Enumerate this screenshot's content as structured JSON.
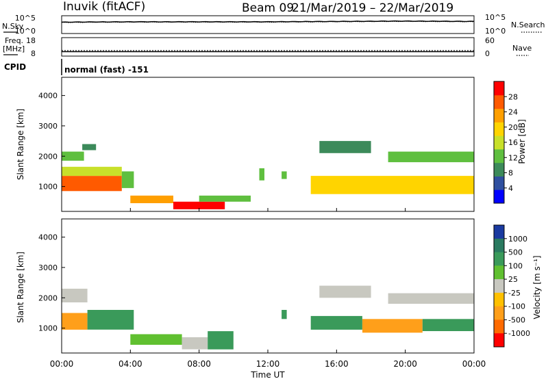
{
  "header": {
    "title": "Inuvik (fitACF)",
    "beam_label": "Beam 09",
    "date_range": "21/Mar/2019 – 22/Mar/2019",
    "cpid_label": "CPID",
    "mode": "normal (fast) -151"
  },
  "colors": {
    "power_scale": [
      "#0000ff",
      "#2f4f9f",
      "#3c8a5a",
      "#5fbf3f",
      "#c8e02a",
      "#ffd400",
      "#ff9f00",
      "#ff5a00",
      "#ff0000"
    ],
    "velocity_scale": [
      "#ff0000",
      "#ff6a00",
      "#ff9f1a",
      "#ffc000",
      "#c8c8c0",
      "#60c030",
      "#3a9a5a",
      "#2a7a60",
      "#1a3aa0"
    ]
  },
  "chart_data": [
    {
      "type": "line",
      "panel": "noise",
      "left_label": "N.Sky",
      "right_label": "N.Search",
      "left_ticks": [
        "10^5",
        "10^0"
      ],
      "right_ticks": [
        "10^5",
        "10^0"
      ],
      "x": [
        "00:00",
        "04:00",
        "08:00",
        "12:00",
        "16:00",
        "20:00",
        "00:00"
      ],
      "series": [
        {
          "values": [
            3.2,
            3.3,
            3.3,
            3.3,
            3.4,
            3.5,
            3.4
          ]
        },
        {
          "values": [
            3.1,
            3.2,
            3.2,
            3.2,
            3.3,
            3.4,
            3.3
          ]
        }
      ]
    },
    {
      "type": "line",
      "panel": "frequency",
      "left_label": "Freq.",
      "left_unit": "[MHz]",
      "right_label": "Nave",
      "left_ticks": [
        "18",
        "8"
      ],
      "right_ticks": [
        "60",
        "0"
      ],
      "series": [
        {
          "values": [
            11.0,
            11.0,
            11.0,
            11.0,
            11.0,
            11.0,
            11.0
          ]
        },
        {
          "values": [
            10.4,
            10.4,
            10.4,
            10.4,
            10.4,
            10.4,
            10.4
          ]
        }
      ]
    },
    {
      "type": "heatmap",
      "panel": "power",
      "ylabel": "Slant Range [km]",
      "yticks": [
        "1000",
        "2000",
        "3000",
        "4000"
      ],
      "ylim": [
        180,
        4600
      ],
      "xlim": [
        0,
        24
      ],
      "colorbar_label": "Power [dB]",
      "colorbar_ticks": [
        "4",
        "8",
        "12",
        "16",
        "20",
        "24",
        "28"
      ],
      "colorbar_range": [
        0,
        32
      ],
      "bands": [
        {
          "t0": 0.0,
          "t1": 3.5,
          "r0": 850,
          "r1": 1350,
          "level": 26
        },
        {
          "t0": 0.0,
          "t1": 3.5,
          "r0": 1350,
          "r1": 1650,
          "level": 16
        },
        {
          "t0": 0.0,
          "t1": 1.3,
          "r0": 1850,
          "r1": 2150,
          "level": 12
        },
        {
          "t0": 1.2,
          "t1": 2.0,
          "r0": 2200,
          "r1": 2400,
          "level": 8
        },
        {
          "t0": 3.5,
          "t1": 4.2,
          "r0": 950,
          "r1": 1500,
          "level": 12
        },
        {
          "t0": 4.0,
          "t1": 6.5,
          "r0": 450,
          "r1": 700,
          "level": 24
        },
        {
          "t0": 6.5,
          "t1": 9.5,
          "r0": 250,
          "r1": 500,
          "level": 30
        },
        {
          "t0": 8.0,
          "t1": 11.0,
          "r0": 500,
          "r1": 700,
          "level": 14
        },
        {
          "t0": 11.5,
          "t1": 11.8,
          "r0": 1200,
          "r1": 1600,
          "level": 12
        },
        {
          "t0": 12.8,
          "t1": 13.1,
          "r0": 1250,
          "r1": 1500,
          "level": 12
        },
        {
          "t0": 14.5,
          "t1": 24.0,
          "r0": 750,
          "r1": 1350,
          "level": 18
        },
        {
          "t0": 15.0,
          "t1": 18.0,
          "r0": 2100,
          "r1": 2500,
          "level": 10
        },
        {
          "t0": 19.0,
          "t1": 24.0,
          "r0": 1800,
          "r1": 2150,
          "level": 14
        }
      ]
    },
    {
      "type": "heatmap",
      "panel": "velocity",
      "ylabel": "Slant Range [km]",
      "yticks": [
        "1000",
        "2000",
        "3000",
        "4000"
      ],
      "ylim": [
        180,
        4600
      ],
      "xlim": [
        0,
        24
      ],
      "xlabel": "Time UT",
      "xticks": [
        "00:00",
        "04:00",
        "08:00",
        "12:00",
        "16:00",
        "20:00",
        "00:00"
      ],
      "colorbar_label": "Velocity [m s⁻¹]",
      "colorbar_ticks": [
        "1000",
        "500",
        "100",
        "25",
        "-25",
        "-100",
        "-500",
        "-1000"
      ],
      "bands": [
        {
          "t0": 0.0,
          "t1": 1.5,
          "r0": 950,
          "r1": 1500,
          "level": -300
        },
        {
          "t0": 1.5,
          "t1": 4.2,
          "r0": 950,
          "r1": 1600,
          "level": 150
        },
        {
          "t0": 0.0,
          "t1": 1.5,
          "r0": 1850,
          "r1": 2300,
          "level": 0
        },
        {
          "t0": 4.0,
          "t1": 7.0,
          "r0": 450,
          "r1": 800,
          "level": 60
        },
        {
          "t0": 7.0,
          "t1": 8.5,
          "r0": 300,
          "r1": 700,
          "level": 0
        },
        {
          "t0": 8.5,
          "t1": 10.0,
          "r0": 300,
          "r1": 900,
          "level": 200
        },
        {
          "t0": 12.8,
          "t1": 13.1,
          "r0": 1300,
          "r1": 1600,
          "level": 200
        },
        {
          "t0": 14.5,
          "t1": 17.5,
          "r0": 950,
          "r1": 1400,
          "level": 300
        },
        {
          "t0": 17.5,
          "t1": 21.0,
          "r0": 850,
          "r1": 1300,
          "level": -100
        },
        {
          "t0": 21.0,
          "t1": 24.0,
          "r0": 900,
          "r1": 1300,
          "level": 200
        },
        {
          "t0": 15.0,
          "t1": 18.0,
          "r0": 2000,
          "r1": 2400,
          "level": 0
        },
        {
          "t0": 19.0,
          "t1": 24.0,
          "r0": 1800,
          "r1": 2150,
          "level": 0
        }
      ]
    }
  ]
}
